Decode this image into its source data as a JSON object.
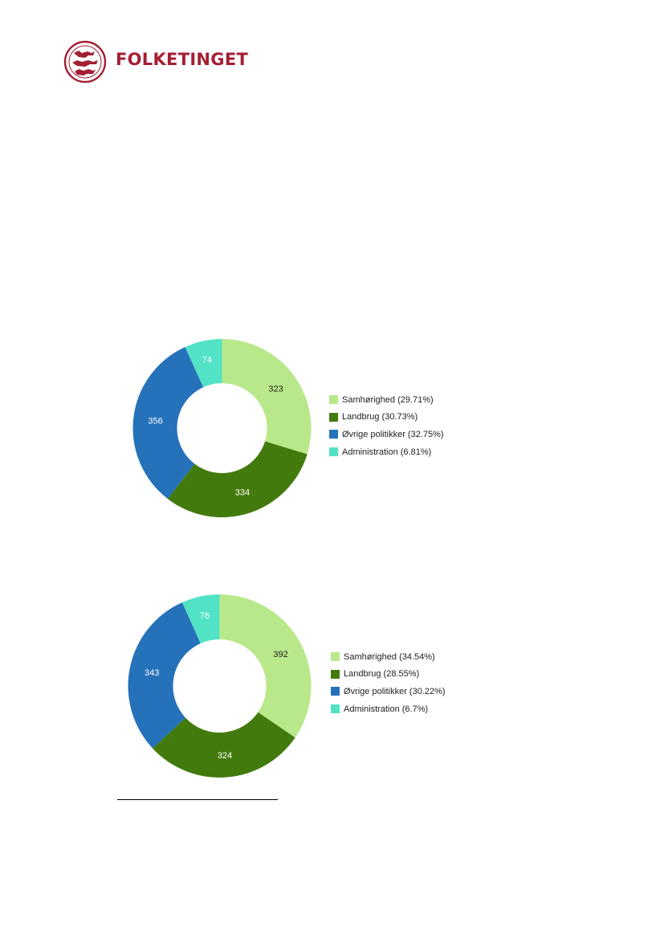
{
  "header": {
    "logo_text": "FOLKETINGET",
    "brand_color": "#a31f34"
  },
  "chart_data": [
    {
      "type": "pie",
      "categories": [
        "Samhørighed",
        "Landbrug",
        "Øvrige politikker",
        "Administration"
      ],
      "values": [
        323,
        334,
        356,
        74
      ],
      "legend_labels": [
        "Samhørighed (29.71%)",
        "Landbrug (30.73%)",
        "Øvrige politikker (32.75%)",
        "Administration (6.81%)"
      ],
      "colors": [
        "#b9e88a",
        "#437a0e",
        "#2672ba",
        "#52e2c5"
      ],
      "label_colors": [
        "#222222",
        "#ffffff",
        "#ffffff",
        "#ffffff"
      ],
      "legend_position": "right"
    },
    {
      "type": "pie",
      "categories": [
        "Samhørighed",
        "Landbrug",
        "Øvrige politikker",
        "Administration"
      ],
      "values": [
        392,
        324,
        343,
        76
      ],
      "legend_labels": [
        "Samhørighed (34.54%)",
        "Landbrug (28.55%)",
        "Øvrige politikker (30.22%)",
        "Administration (6.7%)"
      ],
      "colors": [
        "#b9e88a",
        "#437a0e",
        "#2672ba",
        "#52e2c5"
      ],
      "label_colors": [
        "#222222",
        "#ffffff",
        "#ffffff",
        "#ffffff"
      ],
      "legend_position": "right"
    }
  ]
}
